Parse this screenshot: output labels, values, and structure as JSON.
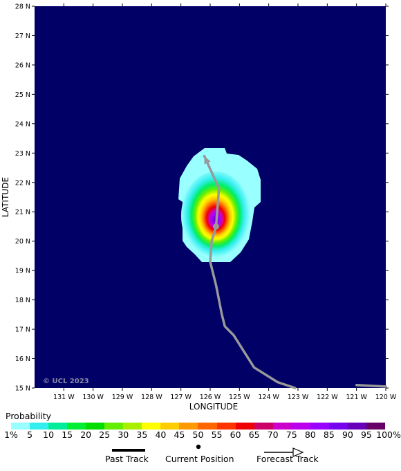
{
  "map": {
    "copyright": "© UCL 2023",
    "x_axis_title": "LONGITUDE",
    "y_axis_title": "LATITUDE",
    "lon_ticks": [
      "131 W",
      "130 W",
      "129 W",
      "128 W",
      "127 W",
      "126 W",
      "125 W",
      "124 W",
      "123 W",
      "122 W",
      "121 W",
      "120 W"
    ],
    "lat_ticks": [
      "28 N",
      "27 N",
      "26 N",
      "25 N",
      "24 N",
      "23 N",
      "22 N",
      "21 N",
      "20 N",
      "19 N",
      "18 N",
      "17 N",
      "16 N",
      "15 N"
    ],
    "background_color": "#000066",
    "track_color": "#999999",
    "current_position": {
      "lon": -125.8,
      "lat": 20.5
    },
    "past_track": [
      {
        "lon": -123.1,
        "lat": 15.0
      },
      {
        "lon": -123.7,
        "lat": 15.2
      },
      {
        "lon": -124.5,
        "lat": 15.7
      },
      {
        "lon": -125.2,
        "lat": 16.8
      },
      {
        "lon": -125.5,
        "lat": 17.1
      },
      {
        "lon": -125.6,
        "lat": 17.5
      },
      {
        "lon": -125.8,
        "lat": 18.5
      },
      {
        "lon": -126.0,
        "lat": 19.3
      },
      {
        "lon": -125.95,
        "lat": 20.0
      },
      {
        "lon": -125.8,
        "lat": 20.5
      }
    ],
    "past_track_side_segment": [
      {
        "lon": -121.0,
        "lat": 15.1
      },
      {
        "lon": -120.0,
        "lat": 15.05
      }
    ],
    "forecast_track": [
      {
        "lon": -125.8,
        "lat": 20.5
      },
      {
        "lon": -125.7,
        "lat": 21.8
      },
      {
        "lon": -126.2,
        "lat": 22.9
      }
    ],
    "probability_field": {
      "center_lon": -125.8,
      "center_lat": 20.5,
      "peak_percent": 100
    }
  },
  "legend": {
    "title": "Probability",
    "labels": [
      "1%",
      "5",
      "10",
      "15",
      "20",
      "25",
      "30",
      "35",
      "40",
      "45",
      "50",
      "55",
      "60",
      "65",
      "70",
      "75",
      "80",
      "85",
      "90",
      "95",
      "100%"
    ],
    "colors": [
      "#99ffff",
      "#33eeee",
      "#00ee99",
      "#00ee33",
      "#00dd00",
      "#66ee00",
      "#aaee00",
      "#ffff00",
      "#ffcc00",
      "#ff9900",
      "#ff6600",
      "#ff3300",
      "#ee0000",
      "#cc0066",
      "#cc00cc",
      "#bb00ee",
      "#9900ff",
      "#7700ee",
      "#6600bb",
      "#660066"
    ]
  },
  "key": {
    "past_track": "Past Track",
    "current_position": "Current Position",
    "forecast_track": "Forecast Track"
  }
}
